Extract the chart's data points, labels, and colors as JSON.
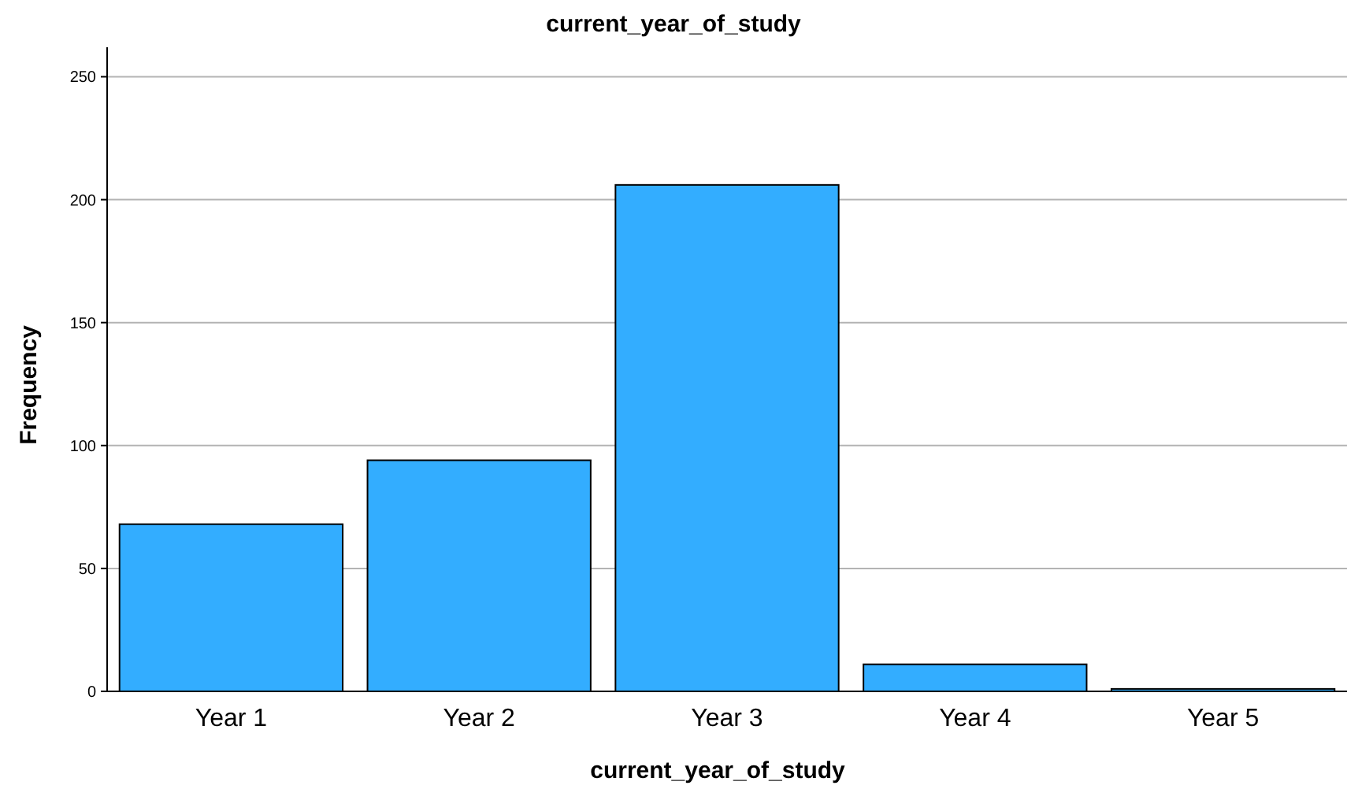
{
  "chart_data": {
    "type": "bar",
    "title": "current_year_of_study",
    "xlabel": "current_year_of_study",
    "ylabel": "Frequency",
    "categories": [
      "Year 1",
      "Year 2",
      "Year 3",
      "Year 4",
      "Year 5"
    ],
    "values": [
      68,
      94,
      206,
      11,
      1
    ],
    "color": "#33adff",
    "ylim": [
      0,
      262
    ],
    "yticks": [
      0,
      50,
      100,
      150,
      200,
      250
    ],
    "grid": "y"
  }
}
